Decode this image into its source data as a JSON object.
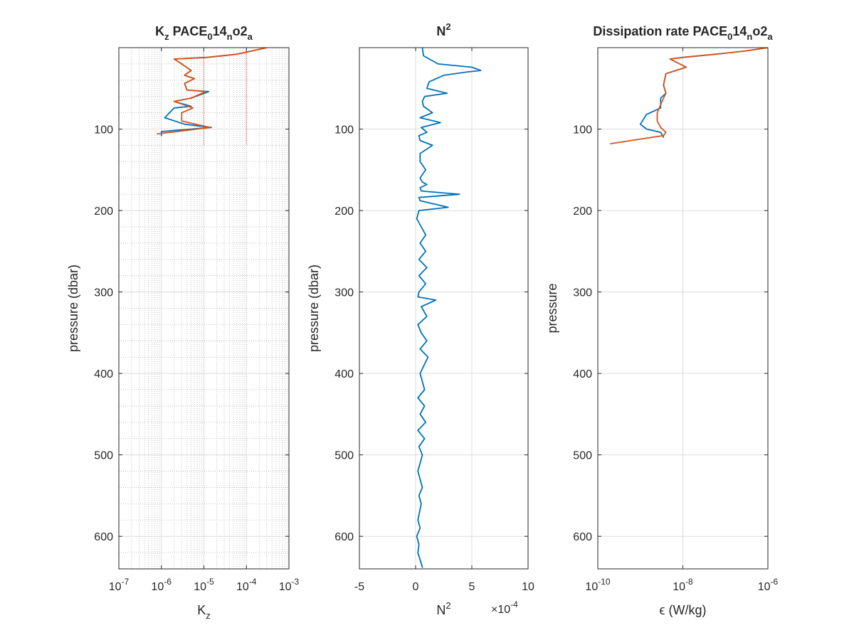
{
  "chart_data": [
    {
      "type": "line",
      "title": {
        "base": "K",
        "sub1": "z",
        "mid": " PACE",
        "sub2": "0",
        "mid2": "14",
        "sub3": "n",
        "mid3": "o2",
        "sub4": "a"
      },
      "xlabel": {
        "base": "K",
        "sub": "z"
      },
      "ylabel": "pressure (dbar)",
      "xscale": "log",
      "xlim": [
        1e-07,
        0.001
      ],
      "ylim": [
        0,
        640
      ],
      "y_reversed": true,
      "grid": "major and minor",
      "xticks": [
        {
          "base": "10",
          "exp": "-7"
        },
        {
          "base": "10",
          "exp": "-6"
        },
        {
          "base": "10",
          "exp": "-5"
        },
        {
          "base": "10",
          "exp": "-4"
        },
        {
          "base": "10",
          "exp": "-3"
        }
      ],
      "xtick_values": [
        1e-07,
        1e-06,
        1e-05,
        0.0001,
        0.001
      ],
      "yticks": [
        "100",
        "200",
        "300",
        "400",
        "500",
        "600"
      ],
      "ytick_values": [
        100,
        200,
        300,
        400,
        500,
        600
      ],
      "reference_lines": [
        {
          "x": 1e-05,
          "y_range": [
            0,
            120
          ],
          "color": "#d62728",
          "style": "dotted"
        },
        {
          "x": 0.0001,
          "y_range": [
            0,
            120
          ],
          "color": "#d62728",
          "style": "dotted"
        }
      ],
      "series": [
        {
          "color": "#0072bd",
          "x": [
            0.0003,
            6e-05,
            1.2e-05,
            2e-06,
            3e-06,
            5e-06,
            3.5e-06,
            6e-06,
            3.5e-06,
            4e-06,
            1.3e-05,
            5e-06,
            2e-06,
            5e-06,
            2e-06,
            1.2e-06,
            3.5e-06,
            1.5e-05,
            1e-06,
            1e-06
          ],
          "y": [
            0,
            8,
            12,
            14,
            20,
            28,
            34,
            38,
            44,
            52,
            54,
            62,
            66,
            72,
            74,
            86,
            94,
            98,
            103,
            108
          ]
        },
        {
          "color": "#d95319",
          "x": [
            0.0003,
            6e-05,
            1.2e-05,
            2e-06,
            3e-06,
            5e-06,
            3.5e-06,
            6e-06,
            3.5e-06,
            4e-06,
            1.1e-05,
            5e-06,
            2e-06,
            5.5e-06,
            3e-06,
            3e-06,
            1.4e-05,
            8e-07
          ],
          "y": [
            0,
            8,
            12,
            14,
            20,
            28,
            34,
            38,
            44,
            52,
            54,
            62,
            66,
            74,
            80,
            90,
            98,
            106
          ]
        }
      ]
    },
    {
      "type": "line",
      "title": {
        "base": "N",
        "sup": "2"
      },
      "xlabel": {
        "base": "N",
        "sup": "2"
      },
      "ylabel": "pressure (dbar)",
      "x_multiplier": {
        "base": "×10",
        "exp": "-4"
      },
      "xlim": [
        -5,
        10
      ],
      "ylim": [
        0,
        640
      ],
      "y_reversed": true,
      "grid": "major",
      "xticks": [
        "-5",
        "0",
        "5",
        "10"
      ],
      "xtick_values": [
        -5,
        0,
        5,
        10
      ],
      "yticks": [
        "100",
        "200",
        "300",
        "400",
        "500",
        "600"
      ],
      "ytick_values": [
        100,
        200,
        300,
        400,
        500,
        600
      ],
      "series": [
        {
          "color": "#0072bd",
          "x": [
            0.6,
            0.7,
            2,
            5,
            5.8,
            4.5,
            2.5,
            1.2,
            1,
            2.8,
            0.8,
            0.6,
            0.7,
            1.5,
            0.4,
            2.2,
            0.5,
            1,
            0.3,
            0.4,
            1.5,
            0.4,
            0.4,
            0.9,
            0.4,
            0.6,
            1,
            0.4,
            0.5,
            3.9,
            0.3,
            0.4,
            2.9,
            0.3,
            0.1,
            0.5,
            0.9,
            0.4,
            0.9,
            0.3,
            1,
            0.3,
            0.9,
            0.3,
            0.2,
            1.8,
            0.5,
            1.0,
            0.2,
            0.5,
            1.0,
            0.4,
            1.1,
            0.4,
            0.8,
            0.2,
            0.8,
            0.4,
            0.9,
            0.2,
            0.8,
            0.3,
            0.6,
            0.2,
            0.6,
            0.3,
            0.5,
            0.2,
            0.4,
            0.1,
            0.3,
            0.2,
            0.6
          ],
          "y": [
            0,
            10,
            20,
            24,
            28,
            30,
            34,
            42,
            50,
            56,
            60,
            66,
            72,
            80,
            86,
            92,
            98,
            104,
            108,
            114,
            120,
            130,
            140,
            150,
            160,
            165,
            168,
            172,
            176,
            180,
            184,
            188,
            196,
            200,
            210,
            220,
            230,
            240,
            250,
            260,
            270,
            280,
            290,
            300,
            306,
            310,
            318,
            330,
            340,
            350,
            360,
            370,
            380,
            400,
            420,
            430,
            440,
            450,
            460,
            470,
            480,
            490,
            500,
            520,
            540,
            550,
            560,
            580,
            590,
            600,
            610,
            620,
            638
          ]
        }
      ]
    },
    {
      "type": "line",
      "title": {
        "base": "Dissipation rate PACE",
        "sub2": "0",
        "mid2": "14",
        "sub3": "n",
        "mid3": "o2",
        "sub4": "a"
      },
      "xlabel": "ϵ (W/kg)",
      "ylabel": "pressure",
      "xscale": "log",
      "xlim": [
        1e-10,
        1e-06
      ],
      "ylim": [
        0,
        640
      ],
      "y_reversed": true,
      "grid": "major",
      "xticks": [
        {
          "base": "10",
          "exp": "-10"
        },
        {
          "base": "10",
          "exp": "-8"
        },
        {
          "base": "10",
          "exp": "-6"
        }
      ],
      "xtick_values": [
        1e-10,
        1e-08,
        1e-06
      ],
      "yticks": [
        "100",
        "200",
        "300",
        "400",
        "500",
        "600"
      ],
      "ytick_values": [
        100,
        200,
        300,
        400,
        500,
        600
      ],
      "series": [
        {
          "color": "#0072bd",
          "x": [
            1e-06,
            3e-07,
            6e-08,
            1e-08,
            5e-09,
            1.2e-08,
            4e-09,
            3.5e-09,
            4e-09,
            3e-09,
            3e-09,
            1.4e-09,
            1e-09,
            1.4e-09,
            3e-09,
            3.5e-09
          ],
          "y": [
            0,
            4,
            8,
            12,
            14,
            24,
            32,
            46,
            56,
            62,
            74,
            82,
            94,
            100,
            104,
            110
          ]
        },
        {
          "color": "#d95319",
          "x": [
            1e-06,
            3e-07,
            6e-08,
            1e-08,
            5e-09,
            1.2e-08,
            4e-09,
            3.5e-09,
            4e-09,
            3.5e-09,
            3e-09,
            2.5e-09,
            2.5e-09,
            3e-09,
            4e-09,
            3.5e-09,
            6e-10,
            2e-10
          ],
          "y": [
            0,
            4,
            8,
            12,
            14,
            24,
            32,
            46,
            56,
            62,
            70,
            80,
            90,
            98,
            104,
            108,
            114,
            118
          ]
        }
      ]
    }
  ]
}
